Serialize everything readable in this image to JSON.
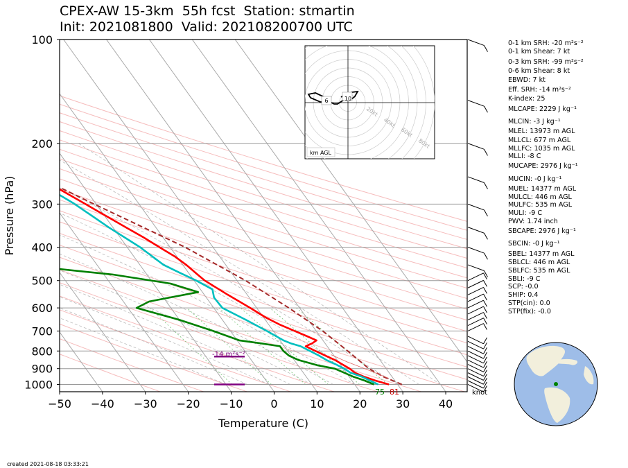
{
  "title": {
    "line1": "CPEX-AW 15-3km  55h fcst  Station: stmartin",
    "line2": "Init: 2021081800  Valid: 202108200700 UTC"
  },
  "chart_data": {
    "type": "skew-t",
    "xlabel": "Temperature (C)",
    "ylabel": "Pressure (hPa)",
    "xlim": [
      -50,
      45
    ],
    "ylim": [
      1050,
      100
    ],
    "xticks": [
      "−50",
      "−40",
      "−30",
      "−20",
      "−10",
      "0",
      "10",
      "20",
      "30",
      "40"
    ],
    "yticks": [
      "100",
      "200",
      "300",
      "400",
      "500",
      "600",
      "700",
      "800",
      "900",
      "1000"
    ],
    "grid": true,
    "series": [
      {
        "color": "#ff0000",
        "values": [
          [
            1000,
            28
          ],
          [
            975,
            25.5
          ],
          [
            950,
            23.5
          ],
          [
            925,
            22
          ],
          [
            900,
            21.5
          ],
          [
            875,
            20.5
          ],
          [
            850,
            19.5
          ],
          [
            825,
            18
          ],
          [
            800,
            16.5
          ],
          [
            775,
            15
          ],
          [
            760,
            17
          ],
          [
            745,
            18.5
          ],
          [
            725,
            17
          ],
          [
            700,
            15
          ],
          [
            670,
            12.5
          ],
          [
            640,
            10.5
          ],
          [
            600,
            8.5
          ],
          [
            550,
            5.5
          ],
          [
            500,
            2.5
          ],
          [
            480,
            1.8
          ],
          [
            450,
            0.8
          ],
          [
            425,
            -0.5
          ],
          [
            400,
            -2.5
          ],
          [
            375,
            -4.5
          ],
          [
            350,
            -7
          ],
          [
            300,
            -12.5
          ],
          [
            250,
            -19
          ],
          [
            200,
            -27
          ],
          [
            150,
            -37
          ],
          [
            130,
            -44
          ],
          [
            100,
            -59
          ]
        ]
      },
      {
        "color": "#00bfbf",
        "values": [
          [
            1000,
            25.5
          ],
          [
            950,
            23
          ],
          [
            925,
            21
          ],
          [
            900,
            20.2
          ],
          [
            875,
            19
          ],
          [
            850,
            17.5
          ],
          [
            825,
            16.5
          ],
          [
            800,
            15.2
          ],
          [
            775,
            13.8
          ],
          [
            760,
            12
          ],
          [
            745,
            10.8
          ],
          [
            700,
            8.5
          ],
          [
            650,
            5.5
          ],
          [
            600,
            2
          ],
          [
            560,
            1.8
          ],
          [
            530,
            2.8
          ],
          [
            500,
            0.5
          ],
          [
            475,
            -2
          ],
          [
            450,
            -4.5
          ],
          [
            400,
            -7
          ],
          [
            350,
            -11
          ],
          [
            300,
            -15
          ],
          [
            250,
            -21
          ],
          [
            200,
            -29
          ],
          [
            150,
            -40
          ],
          [
            130,
            -46.5
          ],
          [
            100,
            -59
          ]
        ]
      },
      {
        "color": "#008000",
        "values": [
          [
            1000,
            24.5
          ],
          [
            975,
            23
          ],
          [
            950,
            21
          ],
          [
            925,
            19.5
          ],
          [
            900,
            18
          ],
          [
            880,
            14.5
          ],
          [
            850,
            11
          ],
          [
            825,
            9.5
          ],
          [
            800,
            9
          ],
          [
            775,
            9
          ],
          [
            760,
            5
          ],
          [
            745,
            0.5
          ],
          [
            700,
            -4
          ],
          [
            650,
            -10
          ],
          [
            600,
            -18
          ],
          [
            575,
            -14
          ],
          [
            540,
            -1
          ],
          [
            510,
            -6
          ],
          [
            480,
            -18
          ],
          [
            450,
            -38.5
          ],
          [
            400,
            -32.5
          ],
          [
            375,
            -31
          ],
          [
            340,
            -23
          ],
          [
            320,
            -27
          ],
          [
            300,
            -29.5
          ],
          [
            250,
            -34.5
          ],
          [
            220,
            -38
          ],
          [
            200,
            -43
          ],
          [
            185,
            -46
          ],
          [
            150,
            -54
          ],
          [
            120,
            -60
          ],
          [
            100,
            -66
          ]
        ]
      },
      {
        "color": "#a52a2a",
        "values": [
          [
            1000,
            31
          ],
          [
            950,
            28
          ],
          [
            900,
            26
          ],
          [
            850,
            25
          ],
          [
            800,
            24
          ],
          [
            700,
            21.5
          ],
          [
            600,
            17.5
          ],
          [
            500,
            12
          ],
          [
            400,
            3.5
          ],
          [
            300,
            -10.5
          ],
          [
            250,
            -19
          ],
          [
            200,
            -31
          ],
          [
            150,
            -46
          ],
          [
            100,
            -71
          ]
        ]
      }
    ],
    "annotations": {
      "srh_label": "-14 m²s⁻²",
      "td_surface": "75",
      "t_surface": "81",
      "wind_units": "knot"
    },
    "hodograph": {
      "rings": [
        "20kt",
        "40kt",
        "60kt",
        "80kt"
      ],
      "labels": [
        "6",
        "10"
      ],
      "legend": "km AGL"
    }
  },
  "indices": [
    "0-1 km SRH: -20 m²s⁻²",
    "0-1 km Shear: 7 kt",
    "0-3 km SRH: -99 m²s⁻²",
    "0-6 km Shear: 8 kt",
    "EBWD: 7 kt",
    "Eff. SRH: -14 m²s⁻²",
    "K-index: 25",
    "MLCAPE: 2229 J kg⁻¹",
    "MLCIN: -3 J kg⁻¹",
    "MLEL: 13973 m AGL",
    "MLLCL: 677 m AGL",
    "MLLFC: 1035 m AGL",
    "MLLI: -8 C",
    "MUCAPE: 2976 J kg⁻¹",
    "MUCIN: -0 J kg⁻¹",
    "MUEL: 14377 m AGL",
    "MULCL: 446 m AGL",
    "MULFC: 535 m AGL",
    "MULI: -9 C",
    "PWV: 1.74 inch",
    "SBCAPE: 2976 J kg⁻¹",
    "SBCIN: -0 J kg⁻¹",
    "SBEL: 14377 m AGL",
    "SBLCL: 446 m AGL",
    "SBLFC: 535 m AGL",
    "SBLI: -9 C",
    "SCP: -0.0",
    "SHIP: 0.4",
    "STP(cin): 0.0",
    "STP(fix): -0.0"
  ],
  "created": "created 2021-08-18 03:33:21"
}
